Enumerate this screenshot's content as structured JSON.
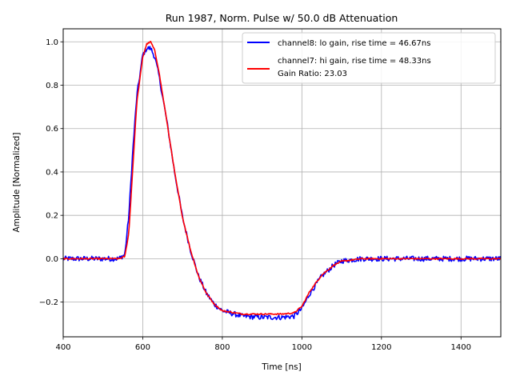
{
  "chart_data": {
    "type": "line",
    "title": "Run 1987, Norm. Pulse w/ 50.0 dB Attenuation",
    "xlabel": "Time [ns]",
    "ylabel": "Amplitude [Normalized]",
    "xlim": [
      400,
      1500
    ],
    "ylim": [
      -0.36,
      1.06
    ],
    "xticks": [
      400,
      600,
      800,
      1000,
      1200,
      1400
    ],
    "xtick_labels": [
      "400",
      "600",
      "800",
      "1000",
      "1200",
      "1400"
    ],
    "yticks": [
      -0.2,
      0.0,
      0.2,
      0.4,
      0.6,
      0.8,
      1.0
    ],
    "ytick_labels": [
      "−0.2",
      "0.0",
      "0.2",
      "0.4",
      "0.6",
      "0.8",
      "1.0"
    ],
    "grid": true,
    "legend_position": "top-right",
    "legend_extra_text": "Gain Ratio: 23.03",
    "series": [
      {
        "name": "channel8: lo gain, rise time = 46.67ns",
        "color": "#0000ff",
        "noise": 0.012,
        "x": [
          400,
          540,
          555,
          565,
          575,
          585,
          600,
          610,
          620,
          630,
          640,
          660,
          680,
          700,
          720,
          740,
          760,
          780,
          800,
          850,
          900,
          950,
          980,
          1000,
          1020,
          1050,
          1080,
          1100,
          1150,
          1200,
          1300,
          1400,
          1500
        ],
        "y": [
          0.0,
          0.0,
          0.02,
          0.2,
          0.5,
          0.75,
          0.94,
          0.97,
          0.97,
          0.93,
          0.85,
          0.64,
          0.4,
          0.19,
          0.04,
          -0.08,
          -0.16,
          -0.21,
          -0.24,
          -0.265,
          -0.27,
          -0.27,
          -0.265,
          -0.23,
          -0.16,
          -0.08,
          -0.03,
          -0.01,
          0.0,
          0.0,
          0.0,
          0.0,
          0.0
        ]
      },
      {
        "name": "channel7: hi gain, rise time = 48.33ns",
        "color": "#ff0000",
        "noise": 0.003,
        "x": [
          400,
          540,
          555,
          565,
          575,
          585,
          600,
          610,
          620,
          630,
          640,
          660,
          680,
          700,
          720,
          740,
          760,
          780,
          800,
          850,
          900,
          950,
          980,
          1000,
          1020,
          1050,
          1080,
          1100,
          1150,
          1200,
          1300,
          1400,
          1500
        ],
        "y": [
          0.0,
          0.0,
          0.01,
          0.12,
          0.42,
          0.72,
          0.93,
          0.99,
          1.0,
          0.96,
          0.87,
          0.64,
          0.4,
          0.19,
          0.04,
          -0.08,
          -0.16,
          -0.21,
          -0.24,
          -0.255,
          -0.255,
          -0.255,
          -0.25,
          -0.22,
          -0.15,
          -0.075,
          -0.03,
          -0.012,
          0.0,
          0.0,
          0.0,
          0.0,
          0.0
        ]
      }
    ]
  }
}
